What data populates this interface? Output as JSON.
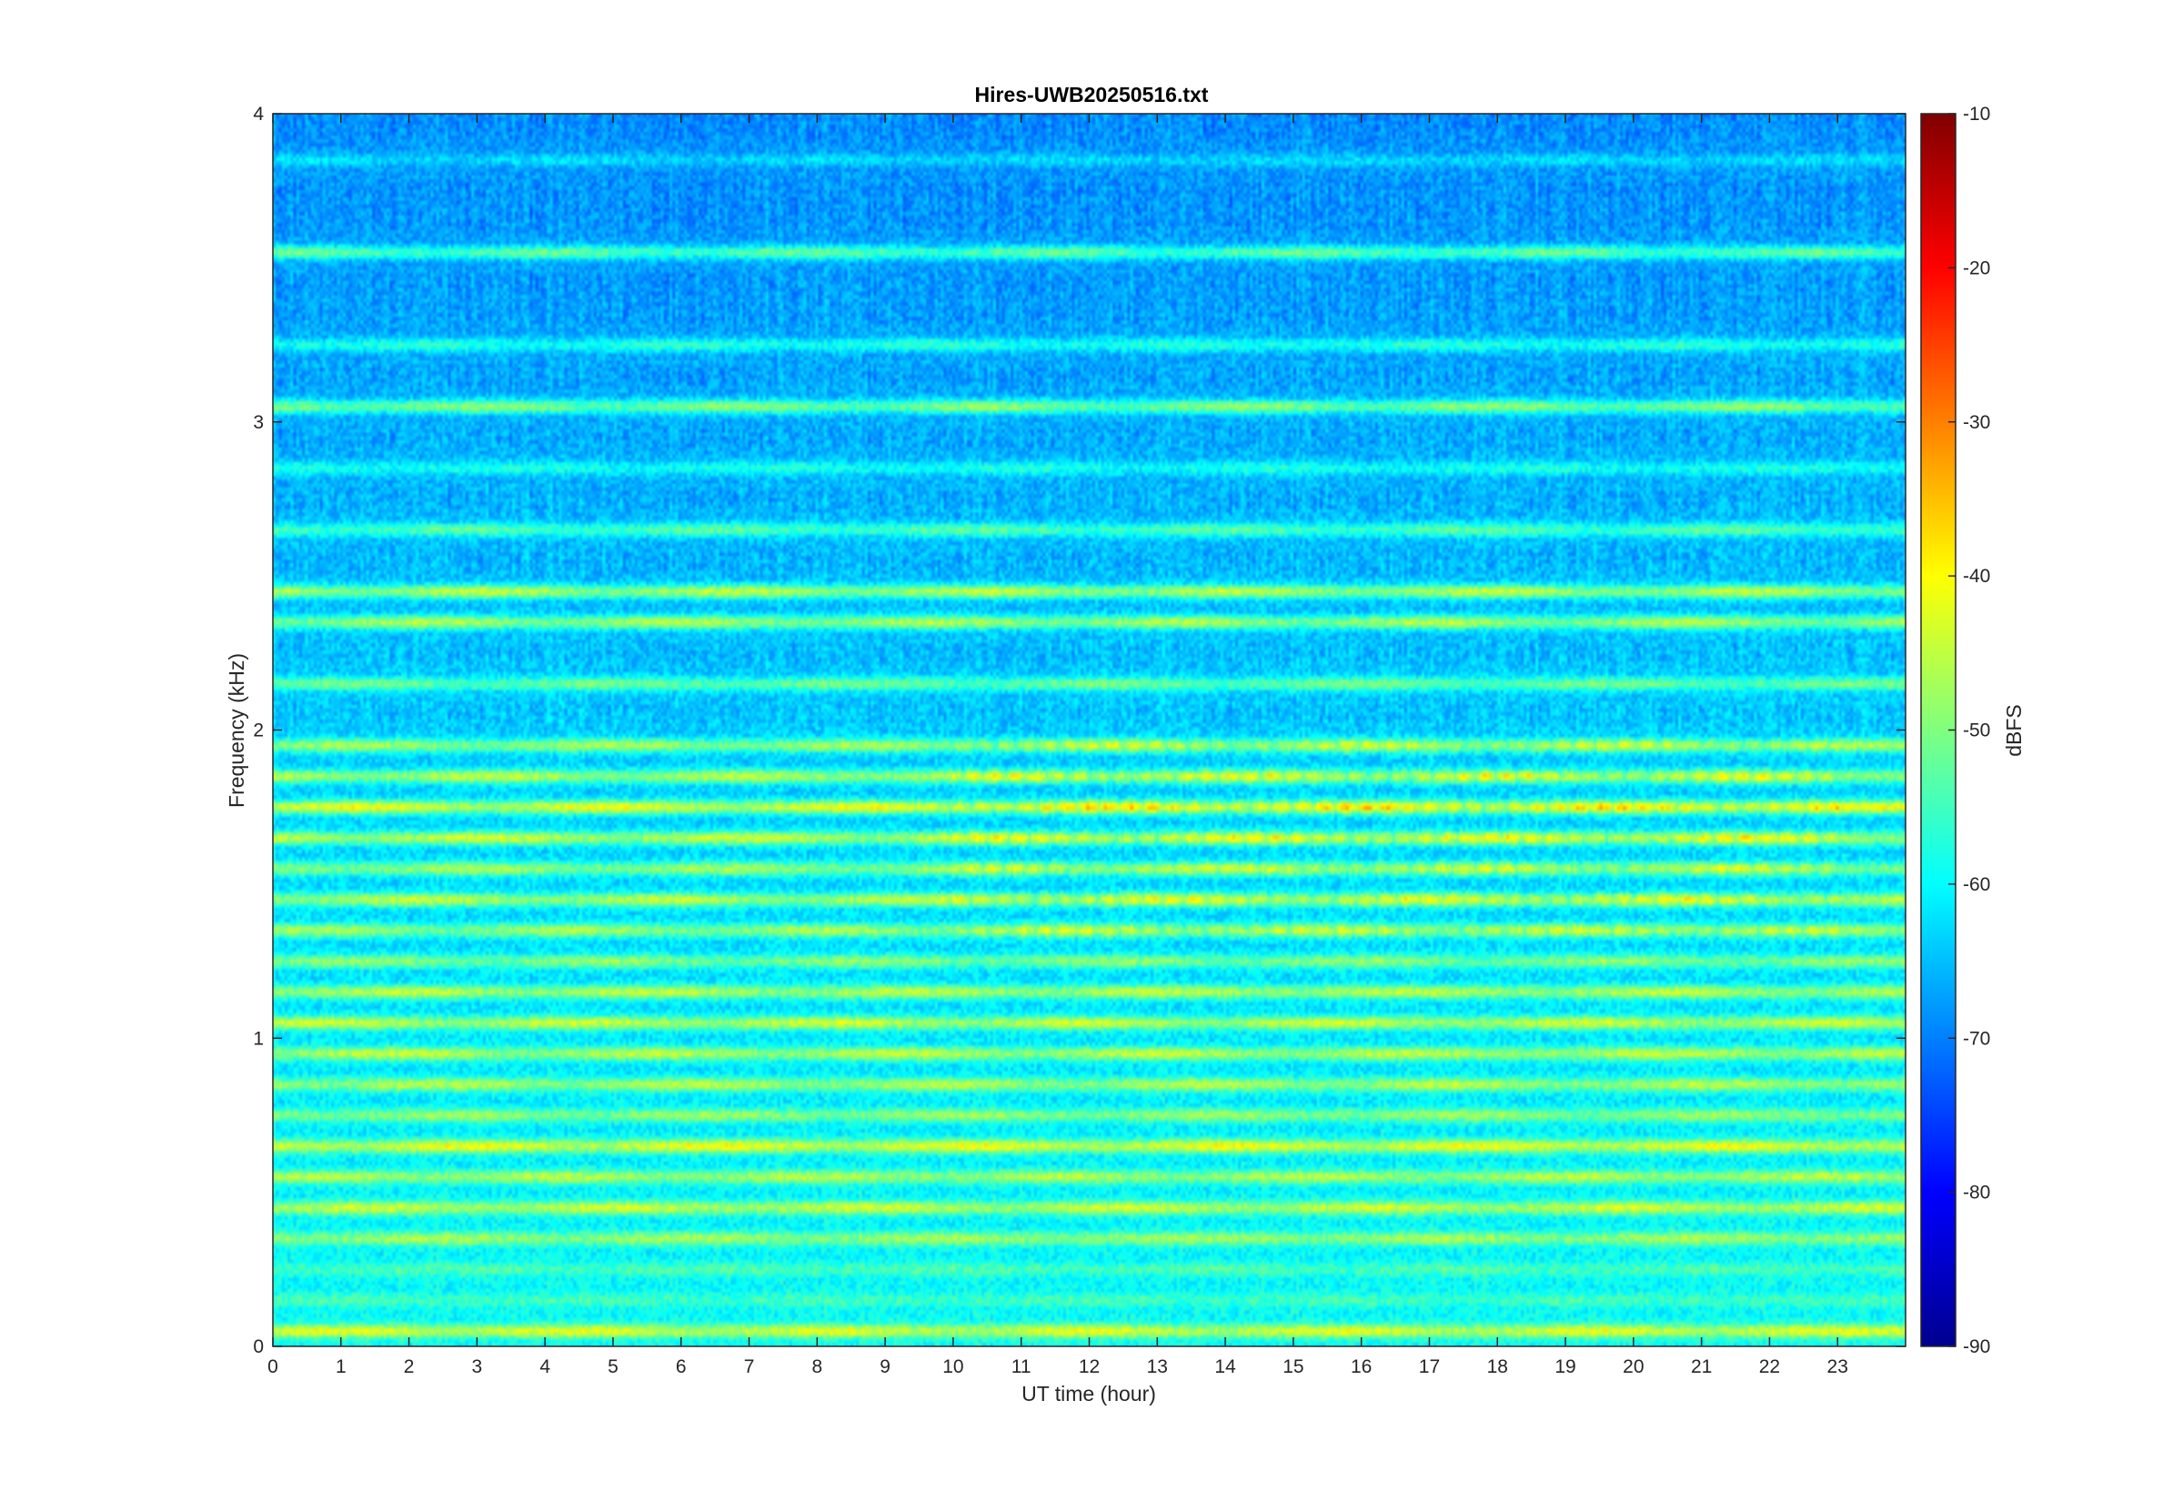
{
  "chart_data": {
    "type": "heatmap",
    "title": "Hires-UWB20250516.txt",
    "xlabel": "UT time (hour)",
    "ylabel": "Frequency (kHz)",
    "colorbar_label": "dBFS",
    "xlim": [
      0,
      24
    ],
    "ylim": [
      0,
      4
    ],
    "clim": [
      -90,
      -10
    ],
    "colormap": "jet",
    "x_ticks": [
      0,
      1,
      2,
      3,
      4,
      5,
      6,
      7,
      8,
      9,
      10,
      11,
      12,
      13,
      14,
      15,
      16,
      17,
      18,
      19,
      20,
      21,
      22,
      23
    ],
    "y_ticks": [
      0,
      1,
      2,
      3,
      4
    ],
    "colorbar_ticks": [
      -90,
      -80,
      -70,
      -60,
      -50,
      -40,
      -30,
      -20,
      -10
    ],
    "grid": false,
    "bands": [
      {
        "f": 0.05,
        "level": -41,
        "note": "strong low band"
      },
      {
        "f": 0.15,
        "level": -54
      },
      {
        "f": 0.25,
        "level": -53
      },
      {
        "f": 0.35,
        "level": -46
      },
      {
        "f": 0.45,
        "level": -43
      },
      {
        "f": 0.55,
        "level": -45
      },
      {
        "f": 0.65,
        "level": -40
      },
      {
        "f": 0.75,
        "level": -47
      },
      {
        "f": 0.85,
        "level": -45
      },
      {
        "f": 0.95,
        "level": -44
      },
      {
        "f": 1.05,
        "level": -43
      },
      {
        "f": 1.15,
        "level": -44
      },
      {
        "f": 1.25,
        "level": -48
      },
      {
        "f": 1.35,
        "level": -46
      },
      {
        "f": 1.45,
        "level": -44
      },
      {
        "f": 1.55,
        "level": -46
      },
      {
        "f": 1.65,
        "level": -43
      },
      {
        "f": 1.75,
        "level": -40
      },
      {
        "f": 1.85,
        "level": -44
      },
      {
        "f": 1.95,
        "level": -46
      },
      {
        "f": 2.15,
        "level": -50
      },
      {
        "f": 2.35,
        "level": -45
      },
      {
        "f": 2.45,
        "level": -44
      },
      {
        "f": 2.65,
        "level": -52
      },
      {
        "f": 2.85,
        "level": -57
      },
      {
        "f": 3.05,
        "level": -48
      },
      {
        "f": 3.25,
        "level": -56
      },
      {
        "f": 3.55,
        "level": -51
      },
      {
        "f": 3.85,
        "level": -62
      }
    ]
  }
}
